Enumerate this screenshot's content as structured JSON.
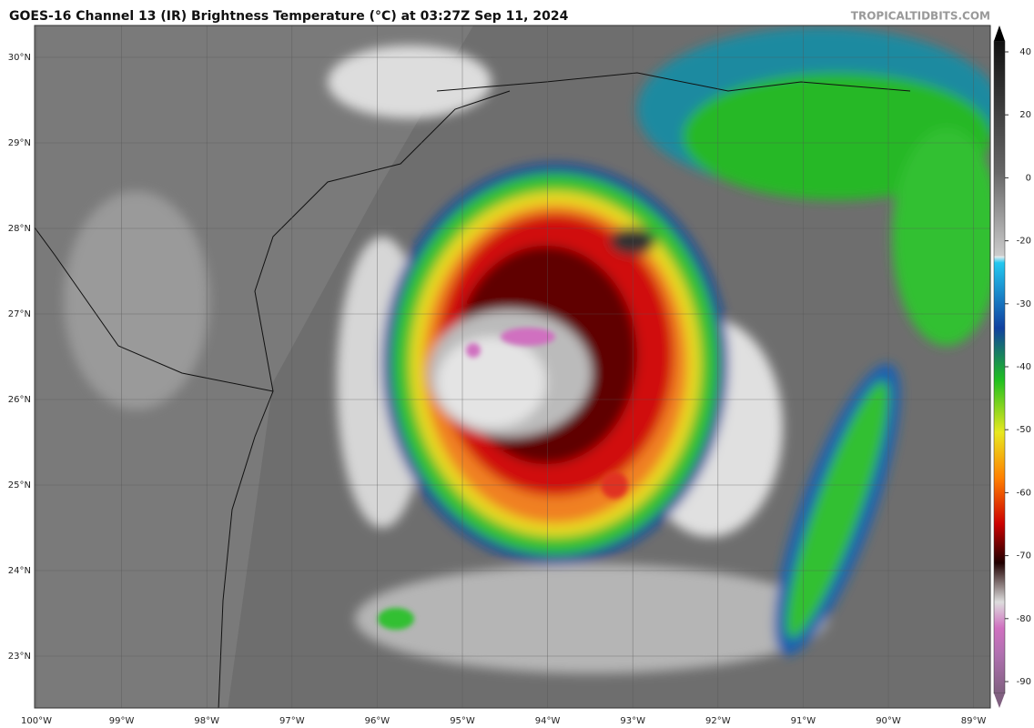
{
  "header": {
    "title": "GOES-16 Channel 13 (IR) Brightness Temperature (°C) at 03:27Z Sep 11, 2024",
    "source": "TROPICALTIDBITS.COM"
  },
  "map": {
    "latitude_labels": [
      "30°N",
      "29°N",
      "28°N",
      "27°N",
      "26°N",
      "25°N",
      "24°N",
      "23°N"
    ],
    "longitude_labels": [
      "100°W",
      "99°W",
      "98°W",
      "97°W",
      "96°W",
      "95°W",
      "94°W",
      "93°W",
      "92°W",
      "91°W",
      "90°W",
      "89°W"
    ]
  },
  "colorbar": {
    "ticks": [
      40,
      20,
      0,
      -20,
      -30,
      -40,
      -50,
      -60,
      -70,
      -80,
      -90
    ]
  }
}
